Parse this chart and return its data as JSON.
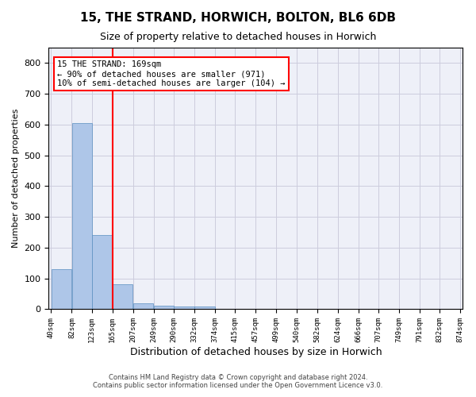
{
  "title": "15, THE STRAND, HORWICH, BOLTON, BL6 6DB",
  "subtitle": "Size of property relative to detached houses in Horwich",
  "xlabel": "Distribution of detached houses by size in Horwich",
  "ylabel": "Number of detached properties",
  "bar_values": [
    130,
    605,
    240,
    80,
    20,
    12,
    8,
    10,
    0,
    0,
    0,
    0,
    0,
    0,
    0,
    0,
    0,
    0,
    0,
    0
  ],
  "bin_edges": [
    40,
    82,
    123,
    165,
    207,
    249,
    290,
    332,
    374,
    415,
    457,
    499,
    540,
    582,
    624,
    666,
    707,
    749,
    791,
    832,
    874
  ],
  "bar_color": "#aec6e8",
  "bar_edge_color": "#5a8fc0",
  "grid_color": "#ccccdd",
  "background_color": "#eef0f8",
  "red_line_x": 165,
  "annotation_text": "15 THE STRAND: 169sqm\n← 90% of detached houses are smaller (971)\n10% of semi-detached houses are larger (104) →",
  "annotation_box_color": "white",
  "annotation_edge_color": "red",
  "red_line_color": "red",
  "ylim": [
    0,
    850
  ],
  "yticks": [
    0,
    100,
    200,
    300,
    400,
    500,
    600,
    700,
    800
  ],
  "footer_line1": "Contains HM Land Registry data © Crown copyright and database right 2024.",
  "footer_line2": "Contains public sector information licensed under the Open Government Licence v3.0."
}
